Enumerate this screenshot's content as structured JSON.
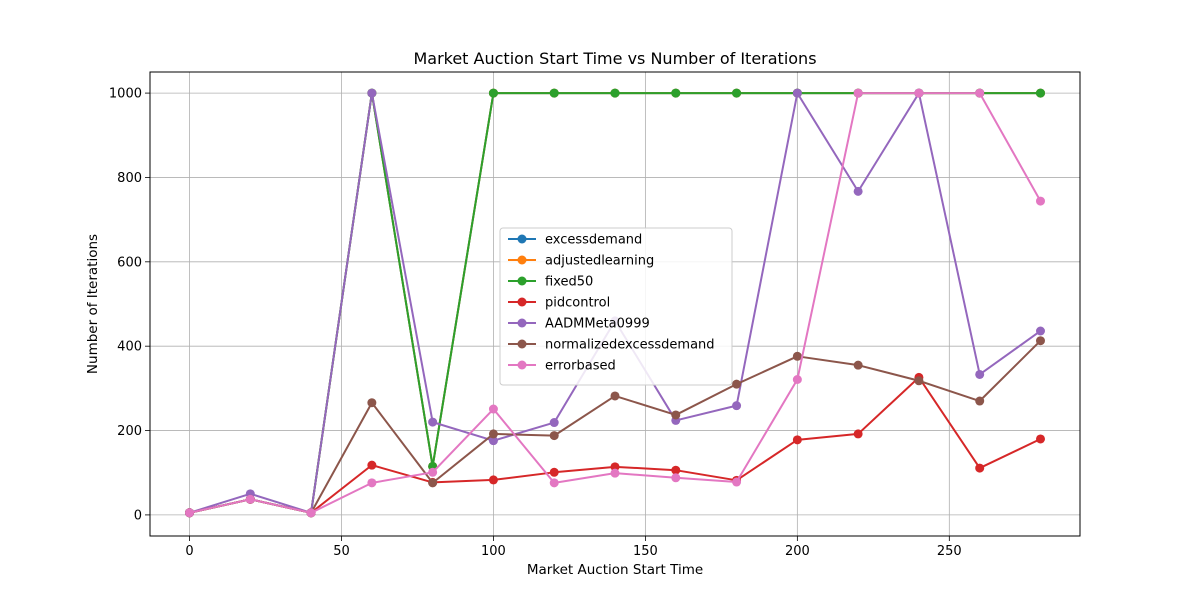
{
  "chart_data": {
    "type": "line",
    "title": "Market Auction Start Time vs Number of Iterations",
    "xlabel": "Market Auction Start Time",
    "ylabel": "Number of Iterations",
    "xlim": [
      -13,
      293
    ],
    "ylim": [
      -50,
      1050
    ],
    "xticks": [
      0,
      50,
      100,
      150,
      200,
      250
    ],
    "yticks": [
      0,
      200,
      400,
      600,
      800,
      1000
    ],
    "grid": true,
    "legend_position": "center",
    "x": [
      0,
      20,
      40,
      60,
      80,
      100,
      120,
      140,
      160,
      180,
      200,
      220,
      240,
      260,
      280
    ],
    "series": [
      {
        "name": "excessdemand",
        "color": "#1f77b4",
        "values": [
          5,
          37,
          5,
          1000,
          115,
          1000,
          1000,
          1000,
          1000,
          1000,
          1000,
          1000,
          1000,
          1000,
          1000
        ]
      },
      {
        "name": "adjustedlearning",
        "color": "#ff7f0e",
        "values": [
          5,
          37,
          5,
          1000,
          115,
          1000,
          1000,
          1000,
          1000,
          1000,
          1000,
          1000,
          1000,
          1000,
          1000
        ]
      },
      {
        "name": "fixed50",
        "color": "#2ca02c",
        "values": [
          5,
          37,
          5,
          1000,
          115,
          1000,
          1000,
          1000,
          1000,
          1000,
          1000,
          1000,
          1000,
          1000,
          1000
        ]
      },
      {
        "name": "pidcontrol",
        "color": "#d62728",
        "values": [
          5,
          37,
          5,
          118,
          77,
          83,
          101,
          114,
          106,
          82,
          178,
          192,
          326,
          111,
          180
        ]
      },
      {
        "name": "AADMMeta0999",
        "color": "#9467bd",
        "values": [
          5,
          50,
          5,
          1000,
          220,
          176,
          219,
          460,
          224,
          259,
          1000,
          767,
          1000,
          333,
          436
        ]
      },
      {
        "name": "normalizedexcessdemand",
        "color": "#8c564b",
        "values": [
          5,
          37,
          5,
          266,
          76,
          192,
          188,
          282,
          237,
          310,
          376,
          355,
          318,
          270,
          413
        ]
      },
      {
        "name": "errorbased",
        "color": "#e377c2",
        "values": [
          5,
          37,
          5,
          76,
          101,
          251,
          76,
          99,
          88,
          78,
          321,
          1000,
          1000,
          1000,
          744
        ]
      }
    ]
  }
}
